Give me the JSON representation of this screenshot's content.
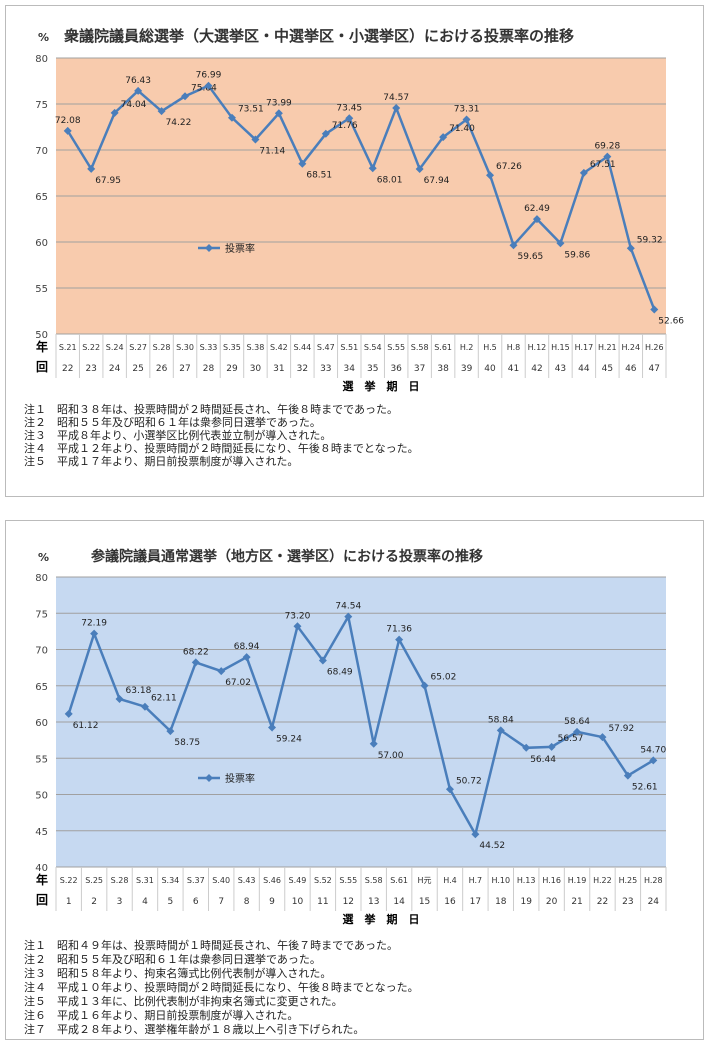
{
  "chart_data": [
    {
      "type": "line",
      "title": "衆議院議員総選挙（大選挙区・中選挙区・小選挙区）における投票率の推移",
      "ylabel": "%",
      "xlabel": "選　挙　期　日",
      "row_labels": [
        "年",
        "回"
      ],
      "ylim": [
        50,
        80
      ],
      "yticks": [
        50,
        55,
        60,
        65,
        70,
        75,
        80
      ],
      "legend": "投票率",
      "legend_position": "center-left",
      "background": "#F8CBAD",
      "line_color": "#4A7EBB",
      "years": [
        "S.21",
        "S.22",
        "S.24",
        "S.27",
        "S.28",
        "S.30",
        "S.33",
        "S.35",
        "S.38",
        "S.42",
        "S.44",
        "S.47",
        "S.51",
        "S.54",
        "S.55",
        "S.58",
        "S.61",
        "H.2",
        "H.5",
        "H.8",
        "H.12",
        "H.15",
        "H.17",
        "H.21",
        "H.24",
        "H.26"
      ],
      "sessions": [
        "22",
        "23",
        "24",
        "25",
        "26",
        "27",
        "28",
        "29",
        "30",
        "31",
        "32",
        "33",
        "34",
        "35",
        "36",
        "37",
        "38",
        "39",
        "40",
        "41",
        "42",
        "43",
        "44",
        "45",
        "46",
        "47"
      ],
      "values": [
        72.08,
        67.95,
        74.04,
        76.43,
        74.22,
        75.84,
        76.99,
        73.51,
        71.14,
        73.99,
        68.51,
        71.76,
        73.45,
        68.01,
        74.57,
        67.94,
        71.4,
        73.31,
        67.26,
        59.65,
        62.49,
        59.86,
        67.51,
        69.28,
        59.32,
        52.66
      ],
      "notes": [
        "注１　昭和３８年は、投票時間が２時間延長され、午後８時までであった。",
        "注２　昭和５５年及び昭和６１年は衆参同日選挙であった。",
        "注３　平成８年より、小選挙区比例代表並立制が導入された。",
        "注４　平成１２年より、投票時間が２時間延長になり、午後８時までとなった。",
        "注５　平成１７年より、期日前投票制度が導入された。"
      ]
    },
    {
      "type": "line",
      "title": "参議院議員通常選挙（地方区・選挙区）における投票率の推移",
      "ylabel": "%",
      "xlabel": "選　挙　期　日",
      "row_labels": [
        "年",
        "回"
      ],
      "ylim": [
        40,
        80
      ],
      "yticks": [
        40,
        45,
        50,
        55,
        60,
        65,
        70,
        75,
        80
      ],
      "legend": "投票率",
      "legend_position": "center-left",
      "background": "#C6D9F1",
      "line_color": "#4A7EBB",
      "years": [
        "S.22",
        "S.25",
        "S.28",
        "S.31",
        "S.34",
        "S.37",
        "S.40",
        "S.43",
        "S.46",
        "S.49",
        "S.52",
        "S.55",
        "S.58",
        "S.61",
        "H元",
        "H.4",
        "H.7",
        "H.10",
        "H.13",
        "H.16",
        "H.19",
        "H.22",
        "H.25",
        "H.28"
      ],
      "sessions": [
        "1",
        "2",
        "3",
        "4",
        "5",
        "6",
        "7",
        "8",
        "9",
        "10",
        "11",
        "12",
        "13",
        "14",
        "15",
        "16",
        "17",
        "18",
        "19",
        "20",
        "21",
        "22",
        "23",
        "24"
      ],
      "values": [
        61.12,
        72.19,
        63.18,
        62.11,
        58.75,
        68.22,
        67.02,
        68.94,
        59.24,
        73.2,
        68.49,
        74.54,
        57.0,
        71.36,
        65.02,
        50.72,
        44.52,
        58.84,
        56.44,
        56.57,
        58.64,
        57.92,
        52.61,
        54.7
      ],
      "notes": [
        "注１　昭和４９年は、投票時間が１時間延長され、午後７時までであった。",
        "注２　昭和５５年及び昭和６１年は衆参同日選挙であった。",
        "注３　昭和５８年より、拘束名簿式比例代表制が導入された。",
        "注４　平成１０年より、投票時間が２時間延長になり、午後８時までとなった。",
        "注５　平成１３年に、比例代表制が非拘束名簿式に変更された。",
        "注６　平成１６年より、期日前投票制度が導入された。",
        "注７　平成２８年より、選挙権年齢が１８歳以上へ引き下げられた。"
      ]
    }
  ]
}
